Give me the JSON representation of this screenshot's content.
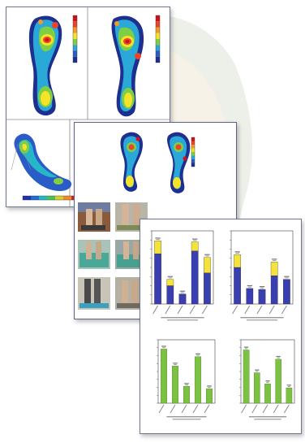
{
  "pressure_scale": {
    "colors": [
      "#d0101a",
      "#e8452b",
      "#f29a28",
      "#f5e32a",
      "#7fcf45",
      "#2aa8d8",
      "#2a5cc8",
      "#1d2f8f"
    ]
  },
  "color_strip": [
    "#2233aa",
    "#1e6fd0",
    "#27b6c8",
    "#4dbf53",
    "#d6d12a",
    "#f08b2a",
    "#d7261e",
    "#c01a6a"
  ],
  "bar_colors": {
    "blue": "#3a3fb0",
    "yellow": "#f6e23c",
    "green": "#7cc242"
  },
  "chart_data": [
    {
      "type": "bar",
      "stacked": true,
      "categories": [
        "",
        "",
        "",
        "",
        ""
      ],
      "series": [
        {
          "name": "",
          "values": [
            55,
            20,
            11,
            58,
            34
          ]
        },
        {
          "name": "",
          "values": [
            14,
            7,
            0,
            10,
            17
          ]
        }
      ],
      "ylim": [
        0,
        80
      ]
    },
    {
      "type": "bar",
      "stacked": true,
      "categories": [
        "",
        "",
        "",
        "",
        ""
      ],
      "series": [
        {
          "name": "",
          "values": [
            40,
            17,
            16,
            31,
            27
          ]
        },
        {
          "name": "",
          "values": [
            14,
            0,
            0,
            15,
            0
          ]
        }
      ],
      "ylim": [
        0,
        80
      ]
    },
    {
      "type": "bar",
      "categories": [
        "",
        "",
        "",
        "",
        ""
      ],
      "values": [
        64,
        44,
        20,
        55,
        17
      ],
      "ylim": [
        0,
        75
      ]
    },
    {
      "type": "bar",
      "categories": [
        "",
        "",
        "",
        "",
        ""
      ],
      "values": [
        63,
        36,
        23,
        52,
        18
      ],
      "ylim": [
        0,
        75
      ]
    }
  ]
}
